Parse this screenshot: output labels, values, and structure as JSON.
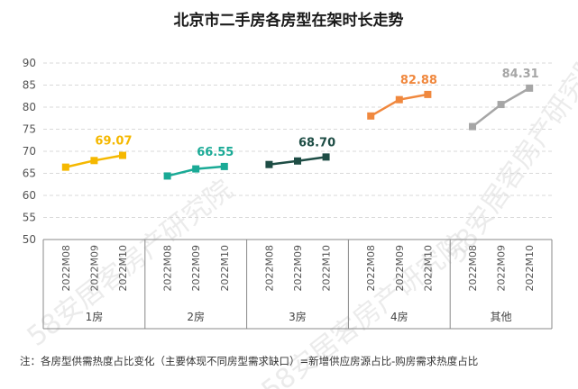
{
  "chart_data": {
    "type": "line",
    "title": "北京市二手房各房型在架时长走势",
    "ylim": [
      50,
      90
    ],
    "yticks": [
      50,
      55,
      60,
      65,
      70,
      75,
      80,
      85,
      90
    ],
    "grid": true,
    "groups": [
      {
        "name": "1房",
        "color": "#F5B800",
        "categories": [
          "2022M08",
          "2022M09",
          "2022M10"
        ],
        "values": [
          66.4,
          67.9,
          69.07
        ],
        "label": "69.07"
      },
      {
        "name": "2房",
        "color": "#1AAA96",
        "categories": [
          "2022M08",
          "2022M09",
          "2022M10"
        ],
        "values": [
          64.4,
          66.0,
          66.55
        ],
        "label": "66.55"
      },
      {
        "name": "3房",
        "color": "#1E4D45",
        "categories": [
          "2022M08",
          "2022M09",
          "2022M10"
        ],
        "values": [
          67.0,
          67.8,
          68.7
        ],
        "label": "68.70"
      },
      {
        "name": "4房",
        "color": "#F0883E",
        "categories": [
          "2022M08",
          "2022M09",
          "2022M10"
        ],
        "values": [
          78.0,
          81.7,
          82.88
        ],
        "label": "82.88"
      },
      {
        "name": "其他",
        "color": "#A6A6A6",
        "categories": [
          "2022M08",
          "2022M09",
          "2022M10"
        ],
        "values": [
          75.6,
          80.6,
          84.31
        ],
        "label": "84.31"
      }
    ],
    "note": "注：各房型供需热度占比变化（主要体现不同房型需求缺口）=新增供应房源占比-购房需求热度占比",
    "watermark": "58安居客房产研究院"
  }
}
